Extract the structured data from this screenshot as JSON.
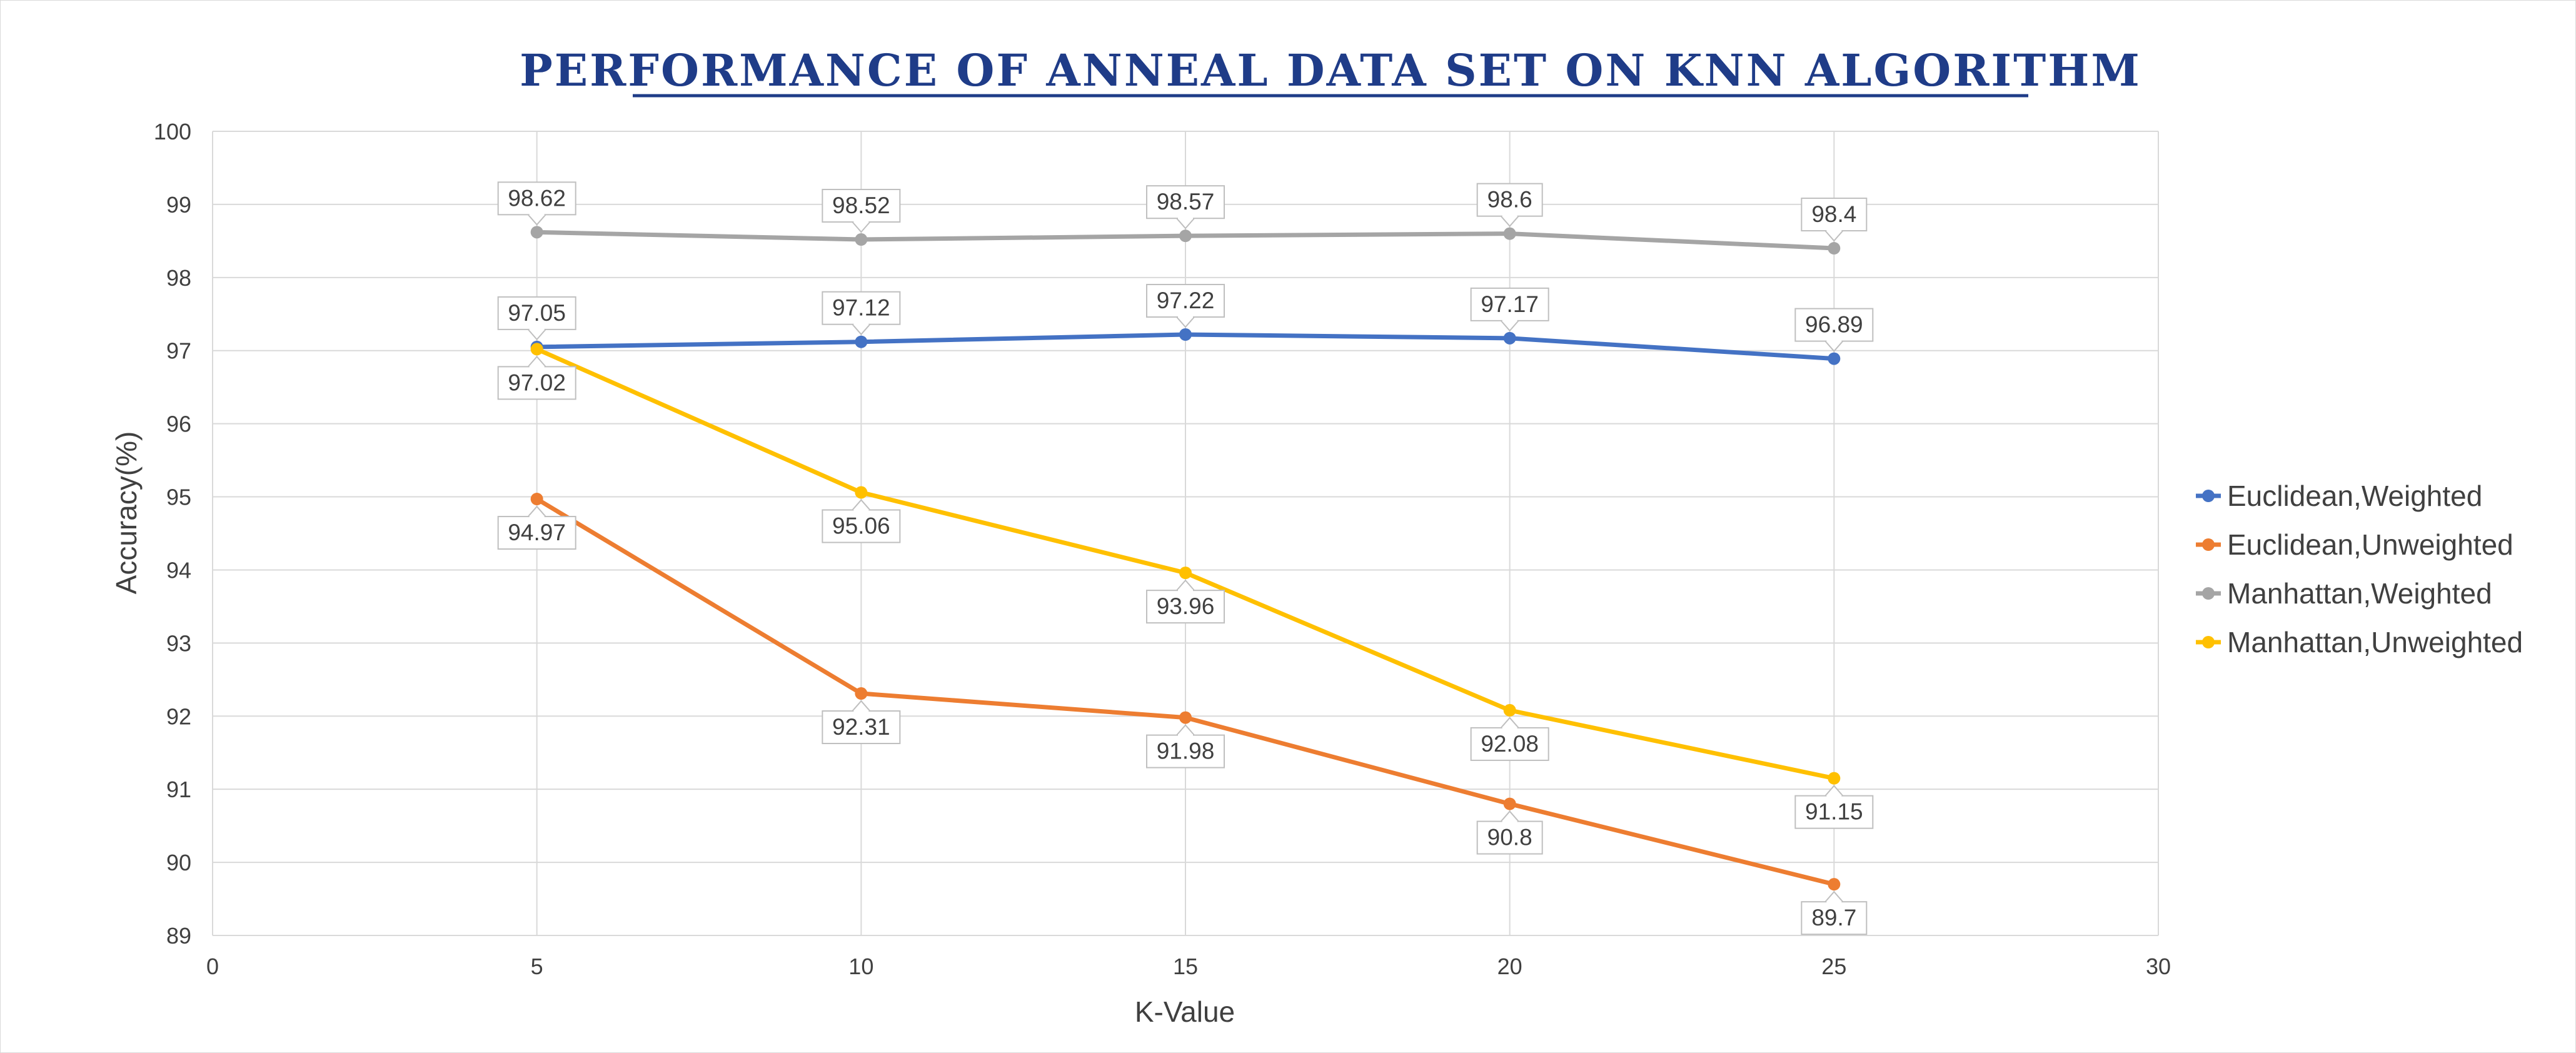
{
  "chart_data": {
    "type": "line",
    "title": "PERFORMANCE OF ANNEAL DATA SET ON KNN ALGORITHM",
    "xlabel": "K-Value",
    "ylabel": "Accuracy(%)",
    "xlim": [
      0,
      30
    ],
    "ylim": [
      89,
      100
    ],
    "x_ticks": [
      0,
      5,
      10,
      15,
      20,
      25,
      30
    ],
    "y_ticks": [
      89,
      90,
      91,
      92,
      93,
      94,
      95,
      96,
      97,
      98,
      99,
      100
    ],
    "grid": true,
    "legend_position": "right",
    "x": [
      5,
      10,
      15,
      20,
      25
    ],
    "series": [
      {
        "name": "Euclidean,Weighted",
        "color": "#4472c4",
        "values": [
          97.05,
          97.12,
          97.22,
          97.17,
          96.89
        ],
        "label_pos": [
          "above",
          "above",
          "above",
          "above",
          "above"
        ]
      },
      {
        "name": "Euclidean,Unweighted",
        "color": "#ed7d31",
        "values": [
          94.97,
          92.31,
          91.98,
          90.8,
          89.7
        ],
        "label_pos": [
          "below",
          "below",
          "below",
          "below",
          "below"
        ]
      },
      {
        "name": "Manhattan,Weighted",
        "color": "#a5a5a5",
        "values": [
          98.62,
          98.52,
          98.57,
          98.6,
          98.4
        ],
        "label_pos": [
          "above",
          "above",
          "above",
          "above",
          "above"
        ]
      },
      {
        "name": "Manhattan,Unweighted",
        "color": "#ffc000",
        "values": [
          97.02,
          95.06,
          93.96,
          92.08,
          91.15
        ],
        "label_pos": [
          "below",
          "below",
          "below",
          "below",
          "below"
        ]
      }
    ]
  }
}
